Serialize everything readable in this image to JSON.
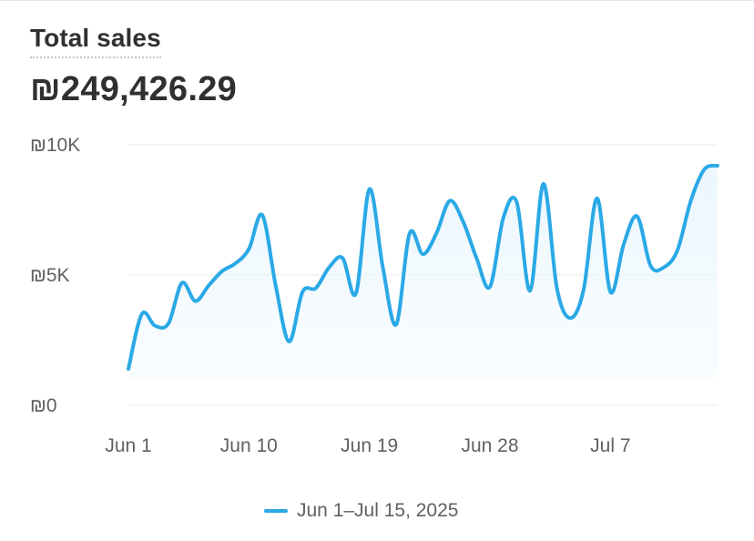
{
  "card": {
    "title": "Total sales",
    "value": "₪249,426.29"
  },
  "colors": {
    "line": "#2aa9e6",
    "area": "#e9f6fd",
    "grid": "#ebebeb",
    "text": "#303030",
    "muted": "#616161"
  },
  "chart_data": {
    "type": "line",
    "title": "",
    "xlabel": "",
    "ylabel": "",
    "ylim": [
      0,
      10000
    ],
    "yticks": [
      0,
      5000,
      10000
    ],
    "ytick_labels": [
      "₪0",
      "₪5K",
      "₪10K"
    ],
    "xtick_labels": [
      "Jun 1",
      "Jun 10",
      "Jun 19",
      "Jun 28",
      "Jul 7"
    ],
    "xtick_index": [
      0,
      9,
      18,
      27,
      36
    ],
    "grid": true,
    "legend": "bottom-center",
    "series": [
      {
        "name": "Jun 1–Jul 15, 2025",
        "values": [
          1400,
          3500,
          3050,
          3150,
          4700,
          4000,
          4600,
          5150,
          5450,
          6000,
          7300,
          4600,
          2450,
          4350,
          4500,
          5300,
          5650,
          4300,
          8300,
          5300,
          3100,
          6600,
          5800,
          6600,
          7850,
          7050,
          5650,
          4550,
          7200,
          7800,
          4400,
          8500,
          4500,
          3350,
          4450,
          7950,
          4350,
          6200,
          7250,
          5350,
          5300,
          5950,
          7850,
          9050,
          9200
        ]
      }
    ]
  }
}
